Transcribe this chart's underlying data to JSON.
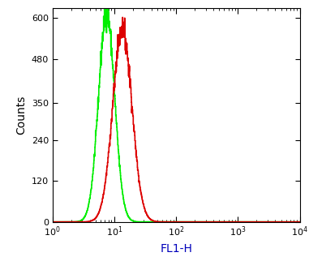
{
  "xlabel": "FL1-H",
  "ylabel": "Counts",
  "xlim": [
    1,
    10000
  ],
  "ylim": [
    0,
    630
  ],
  "yticks": [
    0,
    120,
    240,
    350,
    480,
    600
  ],
  "green_peak_x": 7.5,
  "green_peak_y": 615,
  "green_sigma": 0.13,
  "red_peak_x": 13.5,
  "red_peak_y": 570,
  "red_sigma": 0.155,
  "green_color": "#00ee00",
  "red_color": "#dd0000",
  "linewidth": 1.2,
  "background_color": "#ffffff",
  "xlabel_color": "#0000bb",
  "ylabel_color": "#000000",
  "xlabel_fontsize": 10,
  "ylabel_fontsize": 10,
  "tick_labelsize": 8,
  "noise_seed_green": 42,
  "noise_seed_red": 7,
  "noise_scale": 18
}
